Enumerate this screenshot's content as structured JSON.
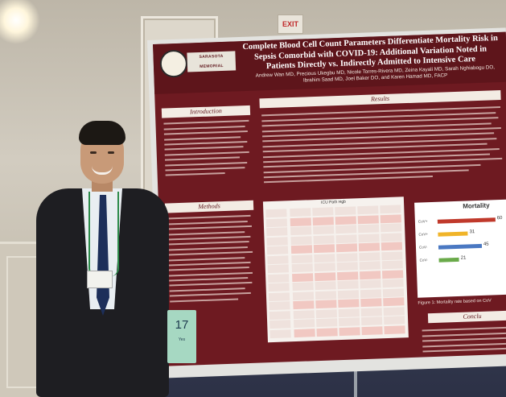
{
  "scene": {
    "exit_sign": "EXIT",
    "booth_sign": {
      "number": "17",
      "sub": "Yes"
    }
  },
  "poster": {
    "logo_text": "SARASOTA MEMORIAL",
    "title": "Complete Blood Cell Count Parameters Differentiate Mortality Risk in Sepsis Comorbid with COVID-19: Additional Variation Noted in Patients Directly vs. Indirectly Admitted to Intensive Care",
    "authors": "Andrew Wan MD, Precious Ukegbu MD, Nicole Torres-Rivera MD, Zeina Kayali MD, Sarah Nghiabogu DO, Ibrahim Saad MD, Joel Baker DO, and Karen Hamad MD, FACP",
    "sections": {
      "introduction": "Introduction",
      "methods": "Methods",
      "results": "Results",
      "conclusions": "Conclu"
    },
    "table_title": "ICU Path Hgb",
    "figure": {
      "title": "Mortality",
      "caption": "Figure 1: Mortality rate based on CoV",
      "bars": [
        {
          "label": "CoV+",
          "value": 60,
          "color": "#c0392b"
        },
        {
          "label": "CoV+",
          "value": 31,
          "color": "#f0b429"
        },
        {
          "label": "CoV-",
          "value": 45,
          "color": "#4a78c2"
        },
        {
          "label": "CoV-",
          "value": 21,
          "color": "#6aaa4a"
        }
      ]
    }
  }
}
